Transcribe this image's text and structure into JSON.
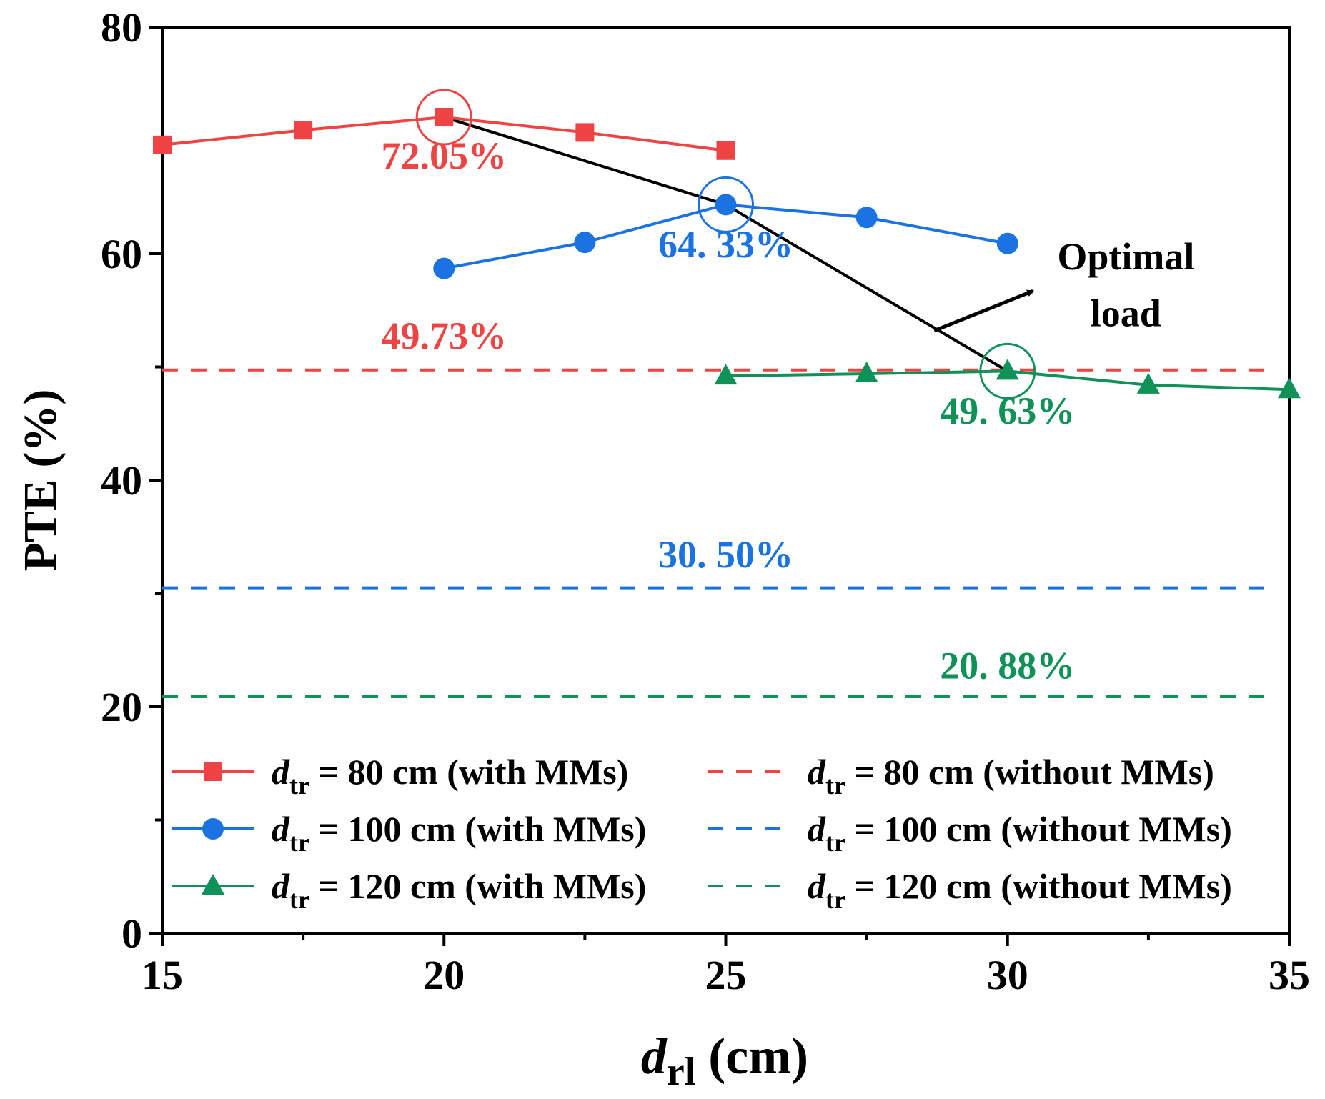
{
  "chart_data": {
    "type": "line",
    "xlabel": {
      "main": "d",
      "sub": "rl",
      "unit": "(cm)"
    },
    "ylabel": "PTE (%)",
    "xlim": [
      15,
      35
    ],
    "ylim": [
      0,
      80
    ],
    "xticks": [
      15,
      20,
      25,
      30,
      35
    ],
    "yticks": [
      0,
      20,
      40,
      60,
      80
    ],
    "grid": false,
    "series": [
      {
        "name": "d_tr = 80 cm (with MMs)",
        "legend_var": "d",
        "legend_sub": "tr",
        "legend_rest": " = 80 cm (with MMs)",
        "color": "#ee4444",
        "marker": "square",
        "x": [
          15,
          17.5,
          20,
          22.5,
          25
        ],
        "y": [
          69.6,
          70.9,
          72.05,
          70.7,
          69.1
        ]
      },
      {
        "name": "d_tr = 100 cm (with MMs)",
        "legend_var": "d",
        "legend_sub": "tr",
        "legend_rest": " = 100 cm (with MMs)",
        "color": "#1a73e0",
        "marker": "circle",
        "x": [
          20,
          22.5,
          25,
          27.5,
          30
        ],
        "y": [
          58.7,
          61.0,
          64.33,
          63.2,
          60.9
        ]
      },
      {
        "name": "d_tr = 120 cm (with MMs)",
        "legend_var": "d",
        "legend_sub": "tr",
        "legend_rest": " = 120 cm (with MMs)",
        "color": "#0f9158",
        "marker": "triangle",
        "x": [
          25,
          27.5,
          30,
          32.5,
          35
        ],
        "y": [
          49.2,
          49.4,
          49.63,
          48.4,
          48.0
        ]
      }
    ],
    "reference_lines": [
      {
        "name": "d_tr = 80 cm (without MMs)",
        "legend_var": "d",
        "legend_sub": "tr",
        "legend_rest": " = 80 cm (without MMs)",
        "color": "#ee4444",
        "y": 49.73
      },
      {
        "name": "d_tr = 100 cm (without MMs)",
        "legend_var": "d",
        "legend_sub": "tr",
        "legend_rest": " = 100 cm (without MMs)",
        "color": "#1a73e0",
        "y": 30.5
      },
      {
        "name": "d_tr = 120 cm (without MMs)",
        "legend_var": "d",
        "legend_sub": "tr",
        "legend_rest": " = 120 cm (without MMs)",
        "color": "#0f9158",
        "y": 20.88
      }
    ],
    "optimal_load_path": {
      "x": [
        20,
        25,
        30
      ],
      "y": [
        72.05,
        64.33,
        49.63
      ],
      "color": "#000000"
    },
    "optimal_markers": [
      {
        "x": 20,
        "y": 72.05,
        "color": "#ee4444"
      },
      {
        "x": 25,
        "y": 64.33,
        "color": "#1a73e0"
      },
      {
        "x": 30,
        "y": 49.63,
        "color": "#0f9158"
      }
    ],
    "annotations": [
      {
        "text": "72.05%",
        "x": 20,
        "y": 67.5,
        "color": "#ee4444"
      },
      {
        "text": "64. 33%",
        "x": 25,
        "y": 59.7,
        "color": "#1a73e0"
      },
      {
        "text": "49. 63%",
        "x": 30,
        "y": 45.0,
        "color": "#0f9158"
      },
      {
        "text": "49.73%",
        "x": 20,
        "y": 51.6,
        "color": "#ee4444"
      },
      {
        "text": "30. 50%",
        "x": 25,
        "y": 32.3,
        "color": "#1a73e0"
      },
      {
        "text": "20. 88%",
        "x": 30,
        "y": 22.5,
        "color": "#0f9158"
      }
    ],
    "arrow_label": {
      "lines": [
        "Optimal",
        "load"
      ],
      "x": 32.1,
      "y_top": 58.6,
      "y_bottom": 53.6
    },
    "arrow": {
      "from": [
        28.7,
        53.2
      ],
      "to": [
        30.45,
        56.7
      ]
    },
    "legend_position": "lower-left, two columns"
  }
}
